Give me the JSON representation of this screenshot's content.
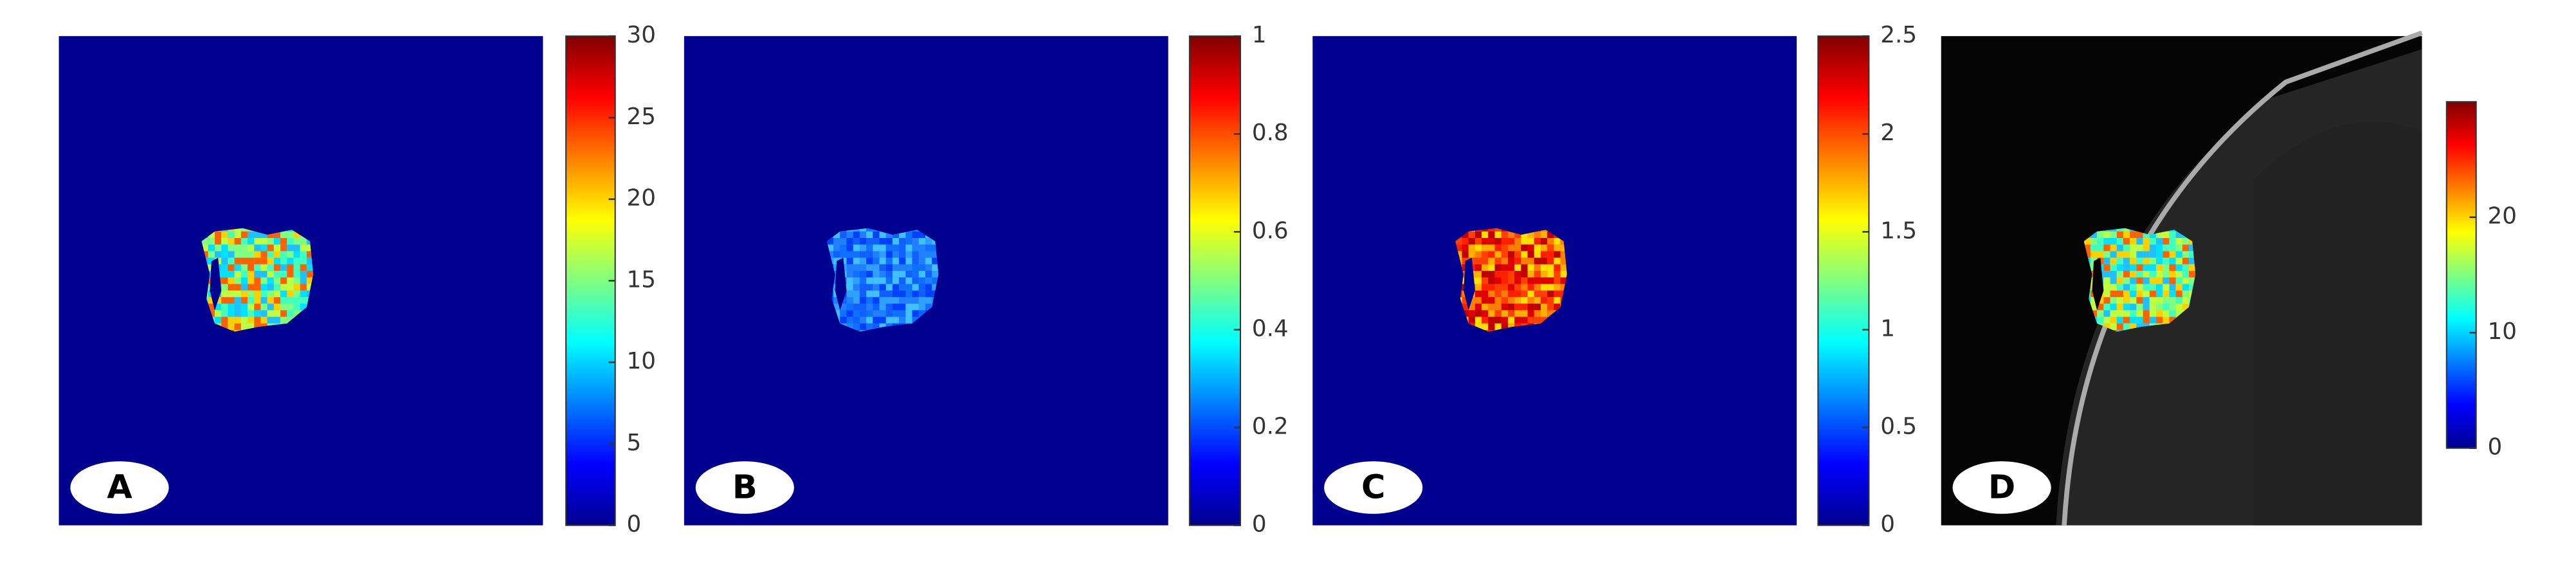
{
  "panels": [
    {
      "label": "A",
      "clim": [
        0,
        30
      ],
      "cticks": [
        0,
        5,
        10,
        15,
        20,
        25,
        30
      ]
    },
    {
      "label": "B",
      "clim": [
        0,
        1
      ],
      "cticks": [
        0,
        0.2,
        0.4,
        0.6,
        0.8,
        1
      ]
    },
    {
      "label": "C",
      "clim": [
        0,
        2.5
      ],
      "cticks": [
        0,
        0.5,
        1,
        1.5,
        2,
        2.5
      ]
    },
    {
      "label": "D",
      "clim": [
        0,
        30
      ],
      "cticks": [
        0,
        10,
        20
      ]
    }
  ]
}
